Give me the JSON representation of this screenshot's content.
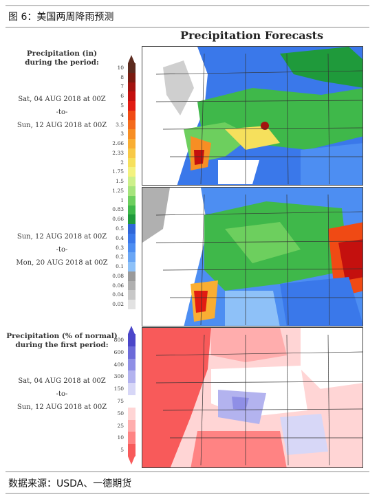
{
  "header": {
    "caption": "图 6：美国两周降雨预测"
  },
  "figure": {
    "title": "Precipitation Forecasts",
    "legend_top": {
      "title": "Precipitation (in)\nduring the period:",
      "ticks": [
        "10",
        "8",
        "7",
        "6",
        "5",
        "4",
        "3.5",
        "3",
        "2.66",
        "2.33",
        "2",
        "1.75",
        "1.5",
        "1.25",
        "1",
        "0.83",
        "0.66",
        "0.5",
        "0.4",
        "0.3",
        "0.2",
        "0.1",
        "0.08",
        "0.06",
        "0.04",
        "0.02"
      ],
      "colors": [
        "#5c2a1e",
        "#7a1a10",
        "#a3130f",
        "#c4100e",
        "#e11b12",
        "#f04a14",
        "#f46b1c",
        "#f78e24",
        "#f9ae33",
        "#f8c947",
        "#f6e05c",
        "#f3f27f",
        "#cdf08a",
        "#a6e47c",
        "#6dcf5e",
        "#3fb84a",
        "#1f9a3b",
        "#2f66d8",
        "#3a78ea",
        "#4d8ef2",
        "#6aa6f5",
        "#8ec1f8",
        "#9a9a9a",
        "#b0b0b0",
        "#c8c8c8",
        "#e2e2e2"
      ]
    },
    "period1": {
      "start": "Sat, 04 AUG 2018 at 00Z",
      "sep": "-to-",
      "end": "Sun, 12 AUG 2018 at 00Z"
    },
    "period2": {
      "start": "Sun, 12 AUG 2018 at 00Z",
      "sep": "-to-",
      "end": "Mon, 20 AUG 2018 at 00Z"
    },
    "legend_bottom": {
      "title": "Precipitation (% of normal)\nduring the first period:",
      "ticks": [
        "800",
        "600",
        "400",
        "300",
        "150",
        "75",
        "50",
        "25",
        "10",
        "5"
      ],
      "colors": [
        "#4b46c9",
        "#6c6ad9",
        "#8f8fe6",
        "#b3b3ef",
        "#d7d7f7",
        "#ffffff",
        "#ffd5d5",
        "#ffadad",
        "#ff8383",
        "#f85a5a"
      ]
    },
    "period3": {
      "start": "Sat, 04 AUG 2018 at 00Z",
      "sep": "-to-",
      "end": "Sun, 12 AUG 2018 at 00Z"
    }
  },
  "footer": {
    "source": "数据来源：USDA、一德期货"
  }
}
